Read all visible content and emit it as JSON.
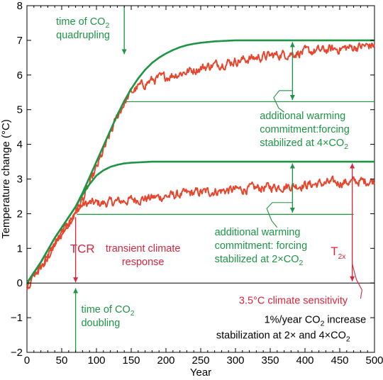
{
  "chart_data": {
    "type": "line",
    "xlabel": "Year",
    "ylabel": "Temperature change (°C)",
    "xlim": [
      0,
      500
    ],
    "ylim": [
      -2,
      8
    ],
    "x_ticks": [
      0,
      50,
      100,
      150,
      200,
      250,
      300,
      350,
      400,
      450,
      500
    ],
    "y_ticks": [
      -2,
      -1,
      0,
      1,
      2,
      3,
      4,
      5,
      6,
      7,
      8
    ],
    "grid": false,
    "colors": {
      "equilibrium": "#1e9445",
      "transient": "#e8452c",
      "red_annotation": "#d7263d",
      "green_annotation": "#1e9445"
    },
    "series": [
      {
        "style": "smooth",
        "color": "#1e9445",
        "x": [
          0,
          20,
          40,
          60,
          70,
          80,
          90,
          100,
          110,
          120,
          130,
          140,
          150,
          160,
          170,
          180,
          190,
          200,
          210,
          220,
          230,
          240,
          250,
          260,
          270,
          280,
          300,
          320,
          350,
          400,
          450,
          500
        ],
        "y": [
          0,
          0.6,
          1.3,
          1.9,
          2.2,
          2.55,
          2.85,
          3.1,
          3.25,
          3.35,
          3.41,
          3.45,
          3.47,
          3.48,
          3.49,
          3.5,
          3.5,
          3.5,
          3.5,
          3.5,
          3.5,
          3.5,
          3.5,
          3.5,
          3.5,
          3.5,
          3.5,
          3.5,
          3.5,
          3.5,
          3.5,
          3.5
        ]
      },
      {
        "style": "smooth",
        "color": "#1e9445",
        "x": [
          0,
          20,
          40,
          60,
          70,
          80,
          90,
          100,
          110,
          120,
          130,
          140,
          150,
          160,
          170,
          180,
          190,
          200,
          210,
          220,
          230,
          240,
          250,
          260,
          270,
          280,
          300,
          320,
          350,
          400,
          450,
          500
        ],
        "y": [
          0,
          0.6,
          1.3,
          1.9,
          2.2,
          2.6,
          3.05,
          3.5,
          3.95,
          4.4,
          4.85,
          5.25,
          5.6,
          5.9,
          6.15,
          6.35,
          6.5,
          6.62,
          6.72,
          6.8,
          6.86,
          6.9,
          6.93,
          6.95,
          6.97,
          6.98,
          7.0,
          7.0,
          7.0,
          7.0,
          7.0,
          7.0
        ]
      },
      {
        "style": "noisy",
        "color": "#e8452c",
        "x": [
          0,
          10,
          20,
          30,
          40,
          50,
          60,
          70,
          80,
          90,
          100,
          110,
          120,
          130,
          140,
          150,
          160,
          170,
          180,
          200,
          220,
          240,
          260,
          280,
          300,
          320,
          340,
          360,
          380,
          400,
          420,
          440,
          460,
          480,
          500
        ],
        "y": [
          -0.1,
          0.2,
          0.45,
          0.75,
          1.1,
          1.4,
          1.75,
          2.05,
          2.25,
          2.3,
          2.3,
          2.3,
          2.32,
          2.35,
          2.37,
          2.4,
          2.42,
          2.44,
          2.46,
          2.5,
          2.55,
          2.6,
          2.63,
          2.66,
          2.69,
          2.72,
          2.75,
          2.78,
          2.8,
          2.83,
          2.86,
          2.89,
          2.91,
          2.93,
          2.95
        ]
      },
      {
        "style": "noisy",
        "color": "#e8452c",
        "x": [
          0,
          10,
          20,
          30,
          40,
          50,
          60,
          70,
          80,
          90,
          100,
          110,
          120,
          130,
          140,
          150,
          160,
          170,
          180,
          200,
          220,
          240,
          260,
          280,
          300,
          320,
          340,
          360,
          380,
          400,
          420,
          440,
          460,
          480,
          500
        ],
        "y": [
          -0.1,
          0.2,
          0.45,
          0.75,
          1.1,
          1.4,
          1.75,
          2.05,
          2.4,
          2.85,
          3.3,
          3.8,
          4.3,
          4.8,
          5.2,
          5.5,
          5.65,
          5.75,
          5.85,
          5.95,
          6.05,
          6.15,
          6.25,
          6.33,
          6.4,
          6.47,
          6.53,
          6.58,
          6.62,
          6.66,
          6.7,
          6.74,
          6.78,
          6.82,
          6.86
        ]
      }
    ],
    "reference_lines": [
      {
        "y": 0,
        "x_from": 0,
        "x_to": 500,
        "color": "#000000",
        "width": 1
      },
      {
        "y": 1.98,
        "x_from": 72,
        "x_to": 470,
        "color": "#1e9445",
        "width": 1.2
      },
      {
        "y": 5.23,
        "x_from": 143,
        "x_to": 500,
        "color": "#1e9445",
        "width": 1.2
      }
    ],
    "arrows": [
      {
        "name": "quadrupling-arrow",
        "x1": 140,
        "y1": 8,
        "x2": 140,
        "y2": 6.6,
        "color": "#1e9445",
        "heads": "end"
      },
      {
        "name": "doubling-arrow",
        "x1": 70,
        "y1": -2,
        "x2": 70,
        "y2": -0.15,
        "color": "#1e9445",
        "heads": "end"
      },
      {
        "name": "tcr-arrow",
        "x1": 70,
        "y1": 1.9,
        "x2": 70,
        "y2": 0.02,
        "color": "#d7263d",
        "heads": "end"
      },
      {
        "name": "commitment-4x-arrow",
        "x1": 382,
        "y1": 6.95,
        "x2": 382,
        "y2": 5.28,
        "color": "#1e9445",
        "heads": "both"
      },
      {
        "name": "commitment-2x-arrow",
        "x1": 382,
        "y1": 3.45,
        "x2": 382,
        "y2": 2.03,
        "color": "#1e9445",
        "heads": "both"
      },
      {
        "name": "sensitivity-arrow",
        "x1": 468,
        "y1": 3.45,
        "x2": 468,
        "y2": 0.05,
        "color": "#d7263d",
        "heads": "both"
      }
    ],
    "annotations": [
      {
        "name": "time-of-quadrupling-label",
        "lines": [
          "time of CO|2",
          "quadrupling"
        ],
        "x": 42,
        "y": 7.45,
        "anchor": "start",
        "color": "#1e9445"
      },
      {
        "name": "commitment-4x-label",
        "lines": [
          "additional warming",
          "commitment:forcing",
          "stabilized at 4×CO|2"
        ],
        "x": 335,
        "y": 4.73,
        "anchor": "start",
        "color": "#1e9445"
      },
      {
        "name": "commitment-2x-label",
        "lines": [
          "additional warming",
          "commitment: forcing",
          "stabilized at 2×CO|2"
        ],
        "x": 270,
        "y": 1.37,
        "anchor": "start",
        "color": "#1e9445"
      },
      {
        "name": "tcr-label",
        "lines": [
          "TCR"
        ],
        "x": 62,
        "y": 0.87,
        "anchor": "start",
        "color": "#d7263d",
        "size": 17
      },
      {
        "name": "transient-climate-response-label",
        "lines": [
          "transient climate",
          "response"
        ],
        "x": 167,
        "y": 0.9,
        "anchor": "middle",
        "color": "#d7263d"
      },
      {
        "name": "t2x-label",
        "lines": [
          "T",
          "2x"
        ],
        "x": 437,
        "y": 0.8,
        "anchor": "start",
        "color": "#d7263d",
        "type": "subscript",
        "size": 17
      },
      {
        "name": "climate-sensitivity-label",
        "lines": [
          "3.5°C climate sensitivity"
        ],
        "x": 305,
        "y": -0.6,
        "anchor": "start",
        "color": "#d7263d"
      },
      {
        "name": "time-of-doubling-label",
        "lines": [
          "time of CO|2",
          "doubling"
        ],
        "x": 78,
        "y": -0.85,
        "anchor": "start",
        "color": "#1e9445"
      },
      {
        "name": "legend-line-1",
        "lines": [
          "1%/year CO|2 increase"
        ],
        "x": 488,
        "y": -1.15,
        "anchor": "end",
        "color": "#000000"
      },
      {
        "name": "legend-line-2",
        "lines": [
          "stabilization at 2× and 4×CO|2"
        ],
        "x": 465,
        "y": -1.6,
        "anchor": "end",
        "color": "#000000"
      }
    ],
    "callouts": [
      {
        "name": "callout-4x",
        "points": [
          [
            382,
            5.55
          ],
          [
            363,
            5.55
          ],
          [
            355,
            5.35
          ],
          [
            362,
            5.05
          ],
          [
            370,
            4.93
          ]
        ],
        "color": "#1e9445"
      },
      {
        "name": "callout-2x",
        "points": [
          [
            382,
            2.32
          ],
          [
            353,
            2.32
          ],
          [
            345,
            2.15
          ],
          [
            352,
            1.8
          ],
          [
            360,
            1.6
          ]
        ],
        "color": "#1e9445"
      },
      {
        "name": "callout-sensitivity",
        "points": [
          [
            468,
            0.55
          ],
          [
            474,
            0.1
          ],
          [
            482,
            -0.2
          ],
          [
            480,
            -0.45
          ]
        ],
        "color": "#d7263d"
      }
    ]
  }
}
